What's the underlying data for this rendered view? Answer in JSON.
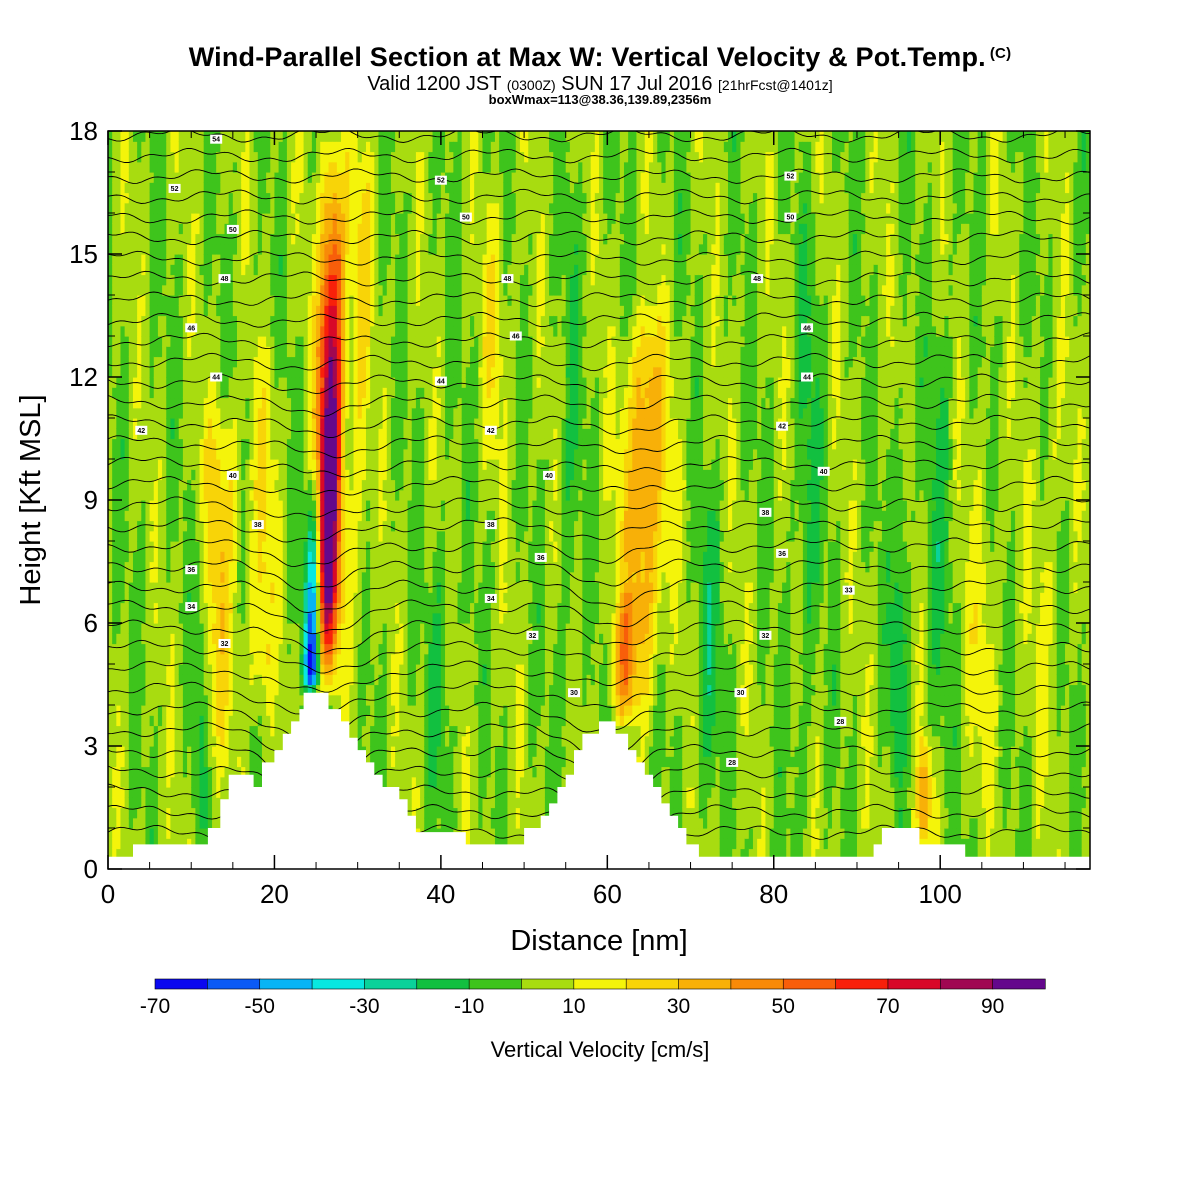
{
  "header": {
    "title": "Wind-Parallel Section at Max W: Vertical Velocity & Pot.Temp.",
    "copyright_mark": "(C)",
    "subtitle_a": "Valid 1200 JST",
    "subtitle_b": "(0300Z)",
    "subtitle_c": "SUN 17 Jul 2016",
    "subtitle_d": "[21hrFcst@1401z]",
    "subtitle2": "boxWmax=113@38.36,139.89,2356m"
  },
  "chart_data": {
    "type": "heatmap",
    "xlabel": "Distance [nm]",
    "ylabel": "Height [Kft MSL]",
    "xlim": [
      0,
      118
    ],
    "ylim": [
      0,
      18
    ],
    "x_ticks": [
      0,
      20,
      40,
      60,
      80,
      100
    ],
    "y_ticks": [
      0,
      3,
      6,
      9,
      12,
      15,
      18
    ],
    "colorbar": {
      "title": "Vertical Velocity [cm/s]",
      "levels": [
        -70,
        -60,
        -50,
        -40,
        -30,
        -20,
        -10,
        0,
        10,
        20,
        30,
        40,
        50,
        60,
        70,
        80,
        90,
        100
      ],
      "tick_labels": [
        "-70",
        "-50",
        "-30",
        "-10",
        "10",
        "30",
        "50",
        "70",
        "90"
      ],
      "colors": [
        "#0a08f0",
        "#0a5af5",
        "#08b4f5",
        "#08e8e0",
        "#0ad29a",
        "#12c040",
        "#3ec41c",
        "#a8dc10",
        "#f4f40a",
        "#f8d408",
        "#f8b008",
        "#f88a08",
        "#f85e0a",
        "#f8200a",
        "#d80828",
        "#a00852",
        "#64088c"
      ]
    },
    "background_w": 2,
    "updraft_bands": [
      {
        "x": 26.5,
        "base": 4.3,
        "top": 18,
        "peak_z": 8.5,
        "w": 105,
        "width_nm": 1.5
      },
      {
        "x": 24.5,
        "base": 4.3,
        "top": 10,
        "peak_z": 5.0,
        "w": -68,
        "width_nm": 1.0
      },
      {
        "x": 13.5,
        "base": 2.0,
        "top": 12,
        "peak_z": 8.5,
        "w": 24,
        "width_nm": 2.2
      },
      {
        "x": 18.5,
        "base": 3.0,
        "top": 13,
        "peak_z": 6.0,
        "w": 20,
        "width_nm": 1.5
      },
      {
        "x": 30.5,
        "base": 3.5,
        "top": 18,
        "peak_z": 15.0,
        "w": 18,
        "width_nm": 1.2
      },
      {
        "x": 64.5,
        "base": 3.5,
        "top": 14,
        "peak_z": 9.8,
        "w": 42,
        "width_nm": 2.5
      },
      {
        "x": 62.0,
        "base": 3.5,
        "top": 7,
        "peak_z": 4.8,
        "w": 32,
        "width_nm": 1.4
      },
      {
        "x": 46.5,
        "base": 9.0,
        "top": 17,
        "peak_z": 14.0,
        "w": 15,
        "width_nm": 1.5
      },
      {
        "x": 98.0,
        "base": 0.5,
        "top": 3.5,
        "peak_z": 1.5,
        "w": 38,
        "width_nm": 0.9
      },
      {
        "x": 40.0,
        "base": 1.0,
        "top": 9.0,
        "peak_z": 5.0,
        "w": -12,
        "width_nm": 1.3
      },
      {
        "x": 72.0,
        "base": 1.0,
        "top": 10.0,
        "peak_z": 5.0,
        "w": -14,
        "width_nm": 1.5
      },
      {
        "x": 84.0,
        "base": 1.0,
        "top": 17.0,
        "peak_z": 9.0,
        "w": -12,
        "width_nm": 1.5
      },
      {
        "x": 11.0,
        "base": 1.0,
        "top": 10.0,
        "peak_z": 4.0,
        "w": -14,
        "width_nm": 1.0
      },
      {
        "x": 100.0,
        "base": 1.0,
        "top": 15.0,
        "peak_z": 9.0,
        "w": -12,
        "width_nm": 1.3
      },
      {
        "x": 113.0,
        "base": 1.0,
        "top": 14.0,
        "peak_z": 8.0,
        "w": 8,
        "width_nm": 2.0
      },
      {
        "x": 95.0,
        "base": 2.0,
        "top": 12.0,
        "peak_z": 5.0,
        "w": -20,
        "width_nm": 0.9
      },
      {
        "x": 105.0,
        "base": 1.0,
        "top": 12.0,
        "peak_z": 5.0,
        "w": 10,
        "width_nm": 2.0
      },
      {
        "x": 55.5,
        "base": 1.0,
        "top": 18.0,
        "peak_z": 10.0,
        "w": -10,
        "width_nm": 1.2
      }
    ],
    "terrain_profile": [
      [
        0,
        0.3
      ],
      [
        3,
        0.3
      ],
      [
        3,
        0.6
      ],
      [
        12,
        0.6
      ],
      [
        12,
        1.0
      ],
      [
        13.5,
        1.0
      ],
      [
        13.5,
        1.7
      ],
      [
        14.5,
        1.7
      ],
      [
        14.5,
        2.3
      ],
      [
        17.5,
        2.3
      ],
      [
        17.5,
        2.0
      ],
      [
        18.5,
        2.0
      ],
      [
        18.5,
        2.6
      ],
      [
        20,
        2.6
      ],
      [
        20,
        2.9
      ],
      [
        21,
        2.9
      ],
      [
        21,
        3.3
      ],
      [
        22,
        3.3
      ],
      [
        22,
        3.6
      ],
      [
        23,
        3.6
      ],
      [
        23,
        3.9
      ],
      [
        23.5,
        3.9
      ],
      [
        23.5,
        4.3
      ],
      [
        26.5,
        4.3
      ],
      [
        26.5,
        3.9
      ],
      [
        28,
        3.9
      ],
      [
        28,
        3.6
      ],
      [
        29,
        3.6
      ],
      [
        29,
        3.2
      ],
      [
        30,
        3.2
      ],
      [
        30,
        2.9
      ],
      [
        31,
        2.9
      ],
      [
        31,
        2.6
      ],
      [
        32,
        2.6
      ],
      [
        32,
        2.3
      ],
      [
        33,
        2.3
      ],
      [
        33,
        2.0
      ],
      [
        35,
        2.0
      ],
      [
        35,
        1.7
      ],
      [
        36,
        1.7
      ],
      [
        36,
        1.3
      ],
      [
        37,
        1.3
      ],
      [
        37,
        0.9
      ],
      [
        43,
        0.9
      ],
      [
        43,
        0.6
      ],
      [
        50,
        0.6
      ],
      [
        50,
        1.0
      ],
      [
        52,
        1.0
      ],
      [
        52,
        1.3
      ],
      [
        53,
        1.3
      ],
      [
        53,
        1.6
      ],
      [
        54,
        1.6
      ],
      [
        54,
        2.0
      ],
      [
        55,
        2.0
      ],
      [
        55,
        2.3
      ],
      [
        56,
        2.3
      ],
      [
        56,
        2.9
      ],
      [
        57,
        2.9
      ],
      [
        57,
        3.3
      ],
      [
        59,
        3.3
      ],
      [
        59,
        3.6
      ],
      [
        61,
        3.6
      ],
      [
        61,
        3.3
      ],
      [
        62.5,
        3.3
      ],
      [
        62.5,
        2.9
      ],
      [
        63.5,
        2.9
      ],
      [
        63.5,
        2.6
      ],
      [
        64.5,
        2.6
      ],
      [
        64.5,
        2.3
      ],
      [
        65.5,
        2.3
      ],
      [
        65.5,
        2.0
      ],
      [
        66.5,
        2.0
      ],
      [
        66.5,
        1.6
      ],
      [
        67.5,
        1.6
      ],
      [
        67.5,
        1.3
      ],
      [
        68.5,
        1.3
      ],
      [
        68.5,
        1.0
      ],
      [
        69.5,
        1.0
      ],
      [
        69.5,
        0.6
      ],
      [
        71,
        0.6
      ],
      [
        71,
        0.3
      ],
      [
        92,
        0.3
      ],
      [
        92,
        0.6
      ],
      [
        93,
        0.6
      ],
      [
        93,
        1.0
      ],
      [
        97.5,
        1.0
      ],
      [
        97.5,
        0.6
      ],
      [
        103,
        0.6
      ],
      [
        103,
        0.3
      ],
      [
        118,
        0.3
      ]
    ],
    "theta_contours": {
      "base_z": 0.9,
      "spacing_kft": 0.5,
      "count": 35,
      "labels": [
        {
          "x": 13,
          "z": 17.8,
          "text": "54"
        },
        {
          "x": 8,
          "z": 16.6,
          "text": "52"
        },
        {
          "x": 40,
          "z": 16.8,
          "text": "52"
        },
        {
          "x": 82,
          "z": 16.9,
          "text": "52"
        },
        {
          "x": 15,
          "z": 15.6,
          "text": "50"
        },
        {
          "x": 43,
          "z": 15.9,
          "text": "50"
        },
        {
          "x": 82,
          "z": 15.9,
          "text": "50"
        },
        {
          "x": 14,
          "z": 14.4,
          "text": "48"
        },
        {
          "x": 48,
          "z": 14.4,
          "text": "48"
        },
        {
          "x": 78,
          "z": 14.4,
          "text": "48"
        },
        {
          "x": 10,
          "z": 13.2,
          "text": "46"
        },
        {
          "x": 49,
          "z": 13.0,
          "text": "46"
        },
        {
          "x": 84,
          "z": 13.2,
          "text": "46"
        },
        {
          "x": 13,
          "z": 12.0,
          "text": "44"
        },
        {
          "x": 40,
          "z": 11.9,
          "text": "44"
        },
        {
          "x": 84,
          "z": 12.0,
          "text": "44"
        },
        {
          "x": 4,
          "z": 10.7,
          "text": "42"
        },
        {
          "x": 46,
          "z": 10.7,
          "text": "42"
        },
        {
          "x": 81,
          "z": 10.8,
          "text": "42"
        },
        {
          "x": 15,
          "z": 9.6,
          "text": "40"
        },
        {
          "x": 53,
          "z": 9.6,
          "text": "40"
        },
        {
          "x": 86,
          "z": 9.7,
          "text": "40"
        },
        {
          "x": 18,
          "z": 8.4,
          "text": "38"
        },
        {
          "x": 46,
          "z": 8.4,
          "text": "38"
        },
        {
          "x": 79,
          "z": 8.7,
          "text": "38"
        },
        {
          "x": 10,
          "z": 7.3,
          "text": "36"
        },
        {
          "x": 52,
          "z": 7.6,
          "text": "36"
        },
        {
          "x": 81,
          "z": 7.7,
          "text": "36"
        },
        {
          "x": 10,
          "z": 6.4,
          "text": "34"
        },
        {
          "x": 46,
          "z": 6.6,
          "text": "34"
        },
        {
          "x": 89,
          "z": 6.8,
          "text": "33"
        },
        {
          "x": 14,
          "z": 5.5,
          "text": "32"
        },
        {
          "x": 51,
          "z": 5.7,
          "text": "32"
        },
        {
          "x": 79,
          "z": 5.7,
          "text": "32"
        },
        {
          "x": 56,
          "z": 4.3,
          "text": "30"
        },
        {
          "x": 76,
          "z": 4.3,
          "text": "30"
        },
        {
          "x": 88,
          "z": 3.6,
          "text": "28"
        },
        {
          "x": 75,
          "z": 2.6,
          "text": "28"
        }
      ]
    }
  }
}
